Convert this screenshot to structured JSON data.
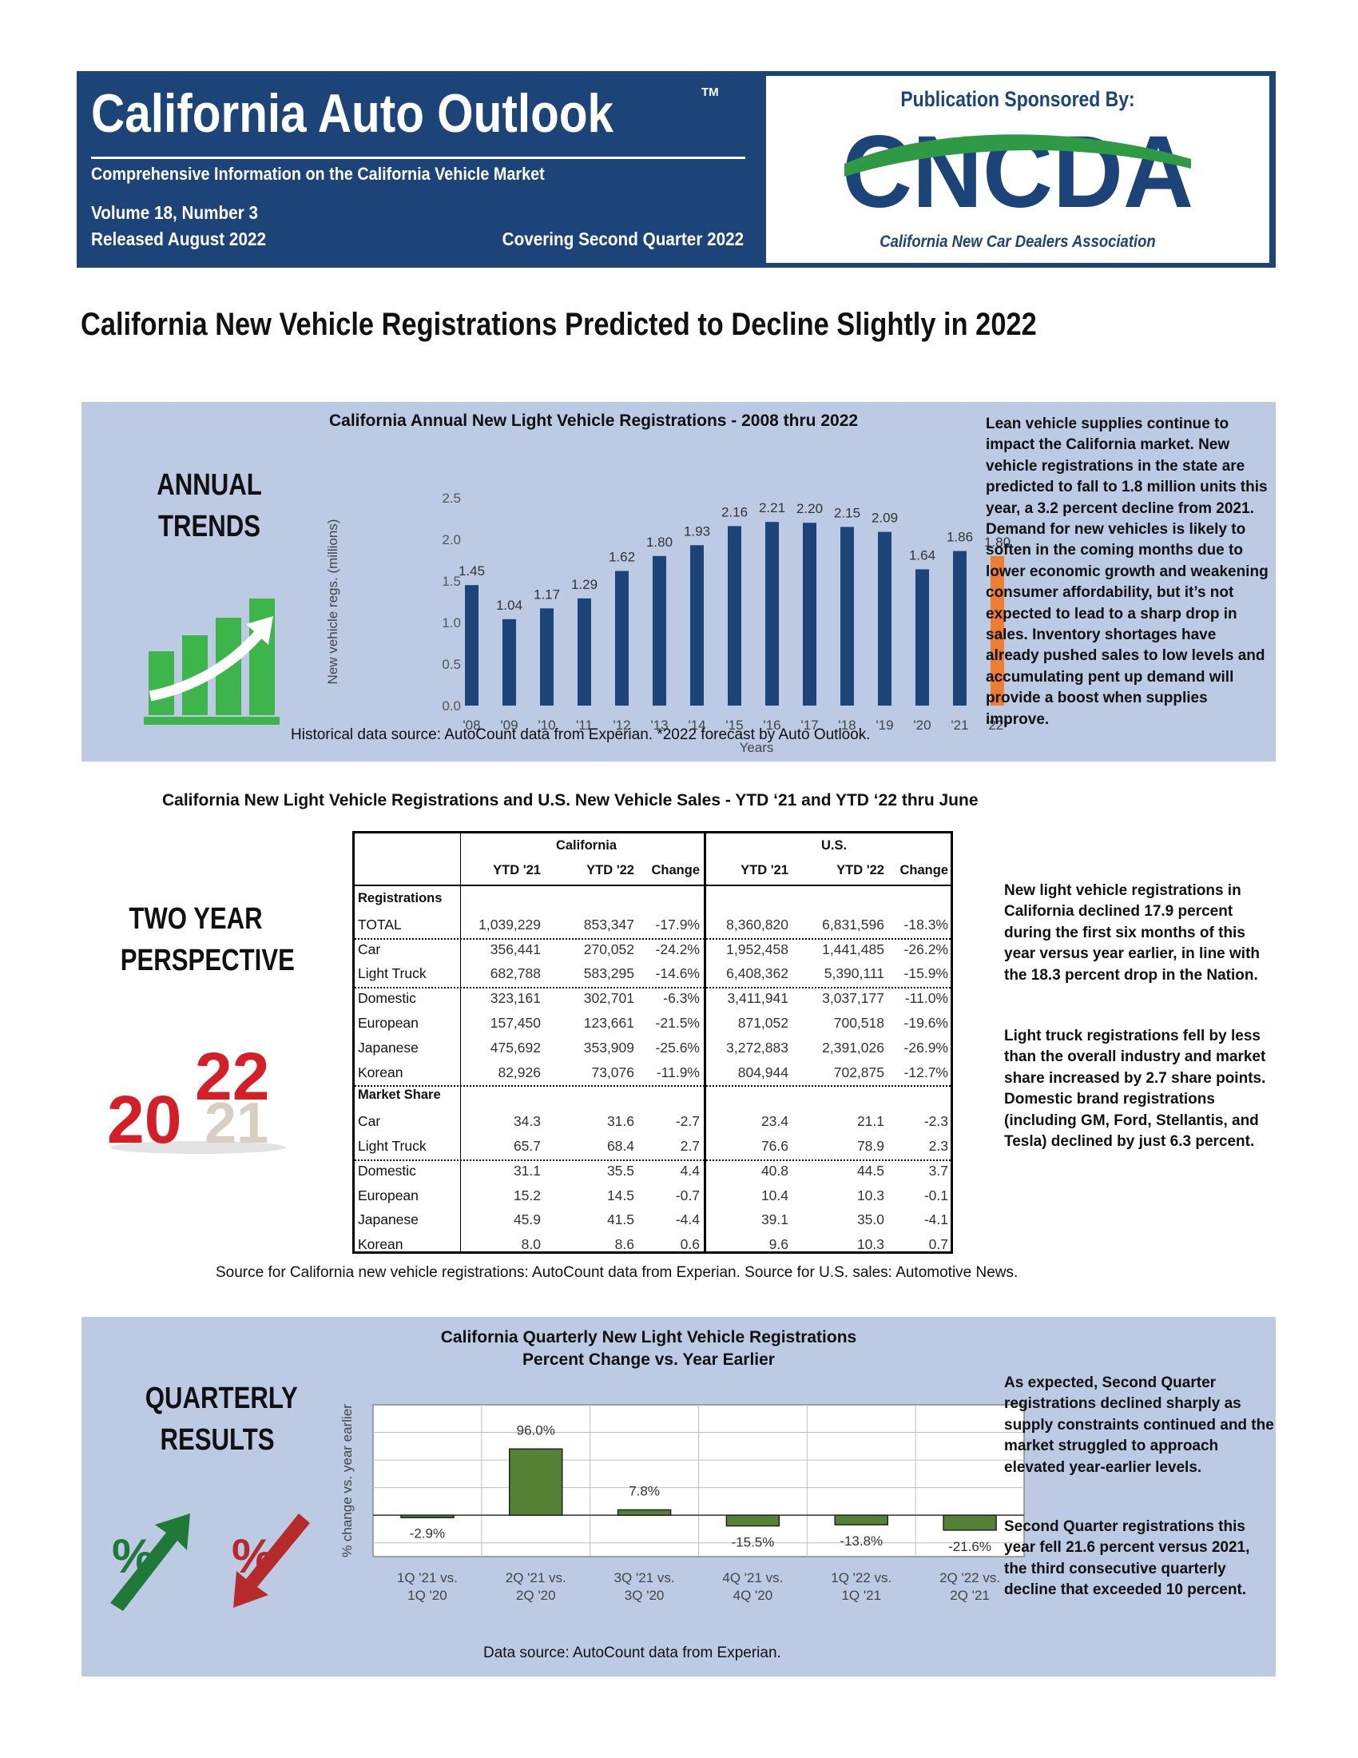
{
  "header": {
    "title": "California Auto Outlook",
    "trademark": "TM",
    "subtitle": "Comprehensive Information on the California Vehicle Market",
    "volume": "Volume 18, Number 3",
    "released": "Released August 2022",
    "covering": "Covering Second Quarter 2022",
    "sponsor_label": "Publication Sponsored By:",
    "sponsor_logo_text": "CNCDA",
    "sponsor_name": "California New Car Dealers Association"
  },
  "colors": {
    "navy": "#1d4478",
    "panel": "#bccae3",
    "bar_blue": "#1d4478",
    "bar_orange": "#ed7d31",
    "bar_green": "#548235",
    "logo_green": "#2e9a45"
  },
  "headline": "California New Vehicle Registrations Predicted to Decline Slightly in 2022",
  "annual": {
    "side_label_1": "ANNUAL",
    "side_label_2": "TRENDS",
    "icon": "bar-growth-icon",
    "source": "Historical data source: AutoCount data from Experian. *2022 forecast by Auto Outlook.",
    "note": "Lean vehicle supplies continue to impact the California market. New vehicle registrations in the state are predicted to fall to 1.8 million units this year, a 3.2 percent decline from 2021. Demand for new vehicles is likely to soften in the coming months due to lower economic growth and  weakening consumer affordability, but it’s not expected to lead to a sharp drop in sales. Inventory shortages have already pushed sales to low levels and accumulating pent up demand will provide a boost when supplies improve."
  },
  "yoy": {
    "title": "California New Light Vehicle Registrations and U.S. New Vehicle Sales - YTD ‘21 and YTD ‘22 thru June",
    "side_label_1": "TWO YEAR",
    "side_label_2": "PERSPECTIVE",
    "icon": "year-2022-icon",
    "icon_text_top": "22",
    "icon_text_left": "20",
    "icon_text_under": "21",
    "groups": [
      "California",
      "U.S."
    ],
    "columns": [
      "YTD '21",
      "YTD '22",
      "Change",
      "YTD '21",
      "YTD '22",
      "Change"
    ],
    "sections": [
      {
        "title": "Registrations",
        "rows": [
          {
            "label": "TOTAL",
            "values": [
              "1,039,229",
              "853,347",
              "-17.9%",
              "8,360,820",
              "6,831,596",
              "-18.3%"
            ]
          },
          {
            "label": "Car",
            "values": [
              "356,441",
              "270,052",
              "-24.2%",
              "1,952,458",
              "1,441,485",
              "-26.2%"
            ]
          },
          {
            "label": "Light Truck",
            "values": [
              "682,788",
              "583,295",
              "-14.6%",
              "6,408,362",
              "5,390,111",
              "-15.9%"
            ]
          },
          {
            "label": "Domestic",
            "values": [
              "323,161",
              "302,701",
              "-6.3%",
              "3,411,941",
              "3,037,177",
              "-11.0%"
            ]
          },
          {
            "label": "European",
            "values": [
              "157,450",
              "123,661",
              "-21.5%",
              "871,052",
              "700,518",
              "-19.6%"
            ]
          },
          {
            "label": "Japanese",
            "values": [
              "475,692",
              "353,909",
              "-25.6%",
              "3,272,883",
              "2,391,026",
              "-26.9%"
            ]
          },
          {
            "label": "Korean",
            "values": [
              "82,926",
              "73,076",
              "-11.9%",
              "804,944",
              "702,875",
              "-12.7%"
            ]
          }
        ]
      },
      {
        "title": "Market Share",
        "rows": [
          {
            "label": "Car",
            "values": [
              "34.3",
              "31.6",
              "-2.7",
              "23.4",
              "21.1",
              "-2.3"
            ]
          },
          {
            "label": "Light Truck",
            "values": [
              "65.7",
              "68.4",
              "2.7",
              "76.6",
              "78.9",
              "2.3"
            ]
          },
          {
            "label": "Domestic",
            "values": [
              "31.1",
              "35.5",
              "4.4",
              "40.8",
              "44.5",
              "3.7"
            ]
          },
          {
            "label": "European",
            "values": [
              "15.2",
              "14.5",
              "-0.7",
              "10.4",
              "10.3",
              "-0.1"
            ]
          },
          {
            "label": "Japanese",
            "values": [
              "45.9",
              "41.5",
              "-4.4",
              "39.1",
              "35.0",
              "-4.1"
            ]
          },
          {
            "label": "Korean",
            "values": [
              "8.0",
              "8.6",
              "0.6",
              "9.6",
              "10.3",
              "0.7"
            ]
          }
        ]
      }
    ],
    "source": "Source for California new vehicle registrations: AutoCount data from Experian. Source for U.S. sales: Automotive News.",
    "note_1": "New light vehicle registrations in California declined 17.9 percent during the first six months of this year versus year earlier, in line with the 18.3 percent drop in the Nation.",
    "note_2": "Light truck registrations fell by less than the overall industry and market share increased by 2.7 share points. Domestic brand registrations (including GM, Ford, Stellantis, and Tesla) declined by just 6.3 percent."
  },
  "quarterly": {
    "side_label_1": "QUARTERLY",
    "side_label_2": "RESULTS",
    "icon_up": "percent-up-arrow-icon",
    "icon_down": "percent-down-arrow-icon",
    "source": "Data source: AutoCount data from Experian.",
    "note_1": "As expected, Second Quarter registrations declined sharply as supply constraints continued and the market struggled to approach elevated year-earlier levels.",
    "note_2": "Second Quarter registrations this year fell 21.6 percent versus 2021, the third consecutive quarterly decline that exceeded 10 percent."
  },
  "chart_data": [
    {
      "type": "bar",
      "title": "California Annual New Light Vehicle Registrations - 2008 thru 2022",
      "xlabel": "Years",
      "ylabel": "New vehicle regs. (millions)",
      "categories": [
        "'08",
        "'09",
        "'10",
        "'11",
        "'12",
        "'13",
        "'14",
        "'15",
        "'16",
        "'17",
        "'18",
        "'19",
        "'20",
        "'21",
        "'22*"
      ],
      "values": [
        1.45,
        1.04,
        1.17,
        1.29,
        1.62,
        1.8,
        1.93,
        2.16,
        2.21,
        2.2,
        2.15,
        2.09,
        1.64,
        1.86,
        1.8
      ],
      "data_labels": [
        "1.45",
        "1.04",
        "1.17",
        "1.29",
        "1.62",
        "1.80",
        "1.93",
        "2.16",
        "2.21",
        "2.20",
        "2.15",
        "2.09",
        "1.64",
        "1.86",
        "1.80"
      ],
      "highlight_last": true,
      "yticks": [
        "0.0",
        "0.5",
        "1.0",
        "1.5",
        "2.0",
        "2.5"
      ],
      "ylim": [
        0,
        2.5
      ],
      "grid": false
    },
    {
      "type": "bar",
      "title": "California Quarterly New Light Vehicle Registrations",
      "subtitle": "Percent Change vs. Year Earlier",
      "xlabel": "",
      "ylabel": "% change vs. year earlier",
      "categories": [
        [
          "1Q '21 vs.",
          "1Q '20"
        ],
        [
          "2Q '21 vs.",
          "2Q '20"
        ],
        [
          "3Q '21 vs.",
          "3Q '20"
        ],
        [
          "4Q '21 vs.",
          "4Q '20"
        ],
        [
          "1Q '22 vs.",
          "1Q '21"
        ],
        [
          "2Q '22 vs.",
          "2Q '21"
        ]
      ],
      "values": [
        -2.9,
        96.0,
        7.8,
        -15.5,
        -13.8,
        -21.6
      ],
      "data_labels": [
        "-2.9%",
        "96.0%",
        "7.8%",
        "-15.5%",
        "-13.8%",
        "-21.6%"
      ],
      "ylim": [
        -60,
        160
      ],
      "grid": true
    }
  ]
}
